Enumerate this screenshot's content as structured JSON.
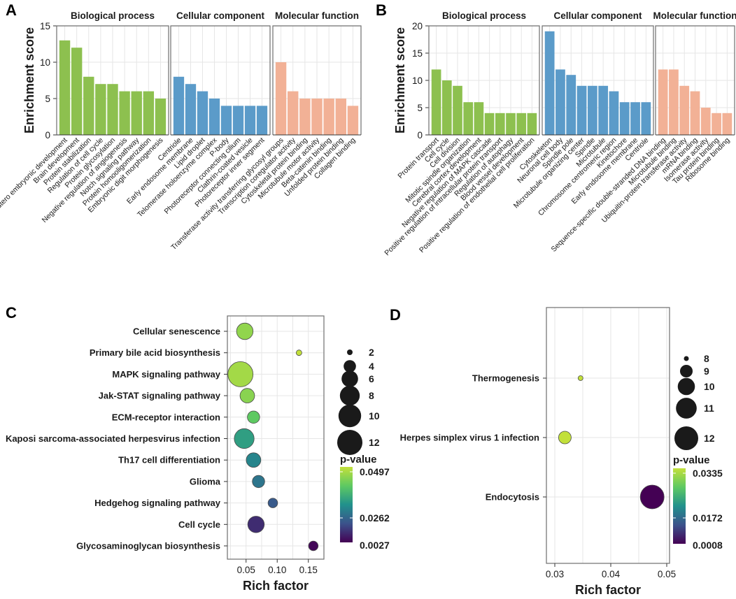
{
  "colors": {
    "biological_process": "#8dc04f",
    "cellular_component": "#5b9bc9",
    "molecular_function": "#f2b196",
    "grid": "#e6e6e6",
    "panel_border": "#6f6f6f",
    "text": "#1a1a1a",
    "bubble_stroke": "#4a4a4a",
    "gradient": [
      "#440154",
      "#3b528b",
      "#21918c",
      "#5ec962",
      "#c2e03a"
    ]
  },
  "chart_data": [
    {
      "panel": "A",
      "type": "bar",
      "ylabel": "Enrichment score",
      "ylim": [
        0,
        15
      ],
      "yticks": [
        0,
        5,
        10,
        15
      ],
      "facets": [
        {
          "name": "Biological process",
          "color_key": "biological_process",
          "categories": [
            "In utero embryonic development",
            "Brain development",
            "Protein stabilization",
            "Regulation of cell cycle",
            "Protein glycosylation",
            "Negative regulation of angiogenesis",
            "Notch signaling pathway",
            "Protein homooligomerization",
            "Embryonic digit morphogenesis"
          ],
          "values": [
            13,
            12,
            8,
            7,
            7,
            6,
            6,
            6,
            5
          ]
        },
        {
          "name": "Cellular component",
          "color_key": "cellular_component",
          "categories": [
            "Centriole",
            "Early endosome membrane",
            "Lipid droplet",
            "Telomerase holoenzyme complex",
            "P-body",
            "Photoreceptor connecting cilium",
            "Clathrin-coated vesicle",
            "Photoreceptor inner segment"
          ],
          "values": [
            8,
            7,
            6,
            5,
            4,
            4,
            4,
            4
          ]
        },
        {
          "name": "Molecular function",
          "color_key": "molecular_function",
          "categories": [
            "Transferase activity transferring glycosyl groups",
            "Transcription coregulator activity",
            "Cytoskeletal protein binding",
            "Microtubule motor activity",
            "Beta-catenin binding",
            "Unfolded protein binding",
            "Collagen binding"
          ],
          "values": [
            10,
            6,
            5,
            5,
            5,
            5,
            4
          ]
        }
      ]
    },
    {
      "panel": "B",
      "type": "bar",
      "ylabel": "Enrichment score",
      "ylim": [
        0,
        20
      ],
      "yticks": [
        0,
        5,
        10,
        15,
        20
      ],
      "facets": [
        {
          "name": "Biological process",
          "color_key": "biological_process",
          "categories": [
            "Protein transport",
            "Cell cycle",
            "Cell division",
            "Mitotic spindle organization",
            "Cerebral cortex development",
            "Negative regulation of MAPK cascade",
            "Positive regulation of intracellular protein transport",
            "Regulation of autophagy",
            "Blood vessel development",
            "Positive regulation of endothelial cell proliferation"
          ],
          "values": [
            12,
            10,
            9,
            6,
            6,
            4,
            4,
            4,
            4,
            4
          ]
        },
        {
          "name": "Cellular component",
          "color_key": "cellular_component",
          "categories": [
            "Cytoskeleton",
            "Neuronal cell body",
            "Spindle pole",
            "Microtubule organizing center",
            "Spindle",
            "Microtubule",
            "Chromosome centromeric region",
            "Kinetochore",
            "Early endosome membrane",
            "Centriole"
          ],
          "values": [
            19,
            12,
            11,
            9,
            9,
            9,
            8,
            6,
            6,
            6
          ]
        },
        {
          "name": "Molecular function",
          "color_key": "molecular_function",
          "categories": [
            "Sequence-specific double-stranded DNA binding",
            "Microtubule binding",
            "Ubiquitin-protein transferase activity",
            "mRNA binding",
            "Isomerase activity",
            "Tau protein binding",
            "Ribosome binding"
          ],
          "values": [
            12,
            12,
            9,
            8,
            5,
            4,
            4
          ]
        }
      ]
    },
    {
      "panel": "C",
      "type": "scatter",
      "xlabel": "Rich factor",
      "xlim": [
        0.02,
        0.175
      ],
      "xticks": [
        0.05,
        0.1,
        0.15
      ],
      "xtick_labels": [
        "0.05",
        "0.10",
        "0.15"
      ],
      "terms": [
        "Cellular senescence",
        "Primary bile acid biosynthesis",
        "MAPK signaling pathway",
        "Jak-STAT signaling pathway",
        "ECM-receptor interaction",
        "Kaposi sarcoma-associated herpesvirus infection",
        "Th17 cell differentiation",
        "Glioma",
        "Hedgehog signaling pathway",
        "Cell cycle",
        "Glycosaminoglycan biosynthesis"
      ],
      "rich_factor": [
        0.048,
        0.135,
        0.041,
        0.052,
        0.062,
        0.047,
        0.062,
        0.07,
        0.093,
        0.066,
        0.158
      ],
      "count": [
        6,
        2,
        12,
        5,
        4,
        8,
        5,
        4,
        3,
        6,
        3
      ],
      "p_value": [
        0.044,
        0.0497,
        0.046,
        0.043,
        0.038,
        0.029,
        0.024,
        0.021,
        0.016,
        0.009,
        0.0035
      ],
      "size_legend": {
        "title": "",
        "values": [
          2,
          4,
          6,
          8,
          10,
          12
        ]
      },
      "color_legend": {
        "title": "p-value",
        "labels": [
          "0.0497",
          "0.0262",
          "0.0027"
        ],
        "range": [
          0.0027,
          0.0497
        ]
      }
    },
    {
      "panel": "D",
      "type": "scatter",
      "xlabel": "Rich factor",
      "xlim": [
        0.0285,
        0.0505
      ],
      "xticks": [
        0.03,
        0.04,
        0.05
      ],
      "xtick_labels": [
        "0.03",
        "0.04",
        "0.05"
      ],
      "terms": [
        "Thermogenesis",
        "Herpes simplex virus 1 infection",
        "Endocytosis"
      ],
      "rich_factor": [
        0.0346,
        0.0318,
        0.0474
      ],
      "count": [
        8,
        9,
        12
      ],
      "p_value": [
        0.0335,
        0.0335,
        0.0008
      ],
      "size_legend": {
        "title": "",
        "values": [
          8,
          9,
          10,
          11,
          12
        ]
      },
      "color_legend": {
        "title": "p-value",
        "labels": [
          "0.0335",
          "0.0172",
          "0.0008"
        ],
        "range": [
          0.0008,
          0.0335
        ]
      }
    }
  ]
}
